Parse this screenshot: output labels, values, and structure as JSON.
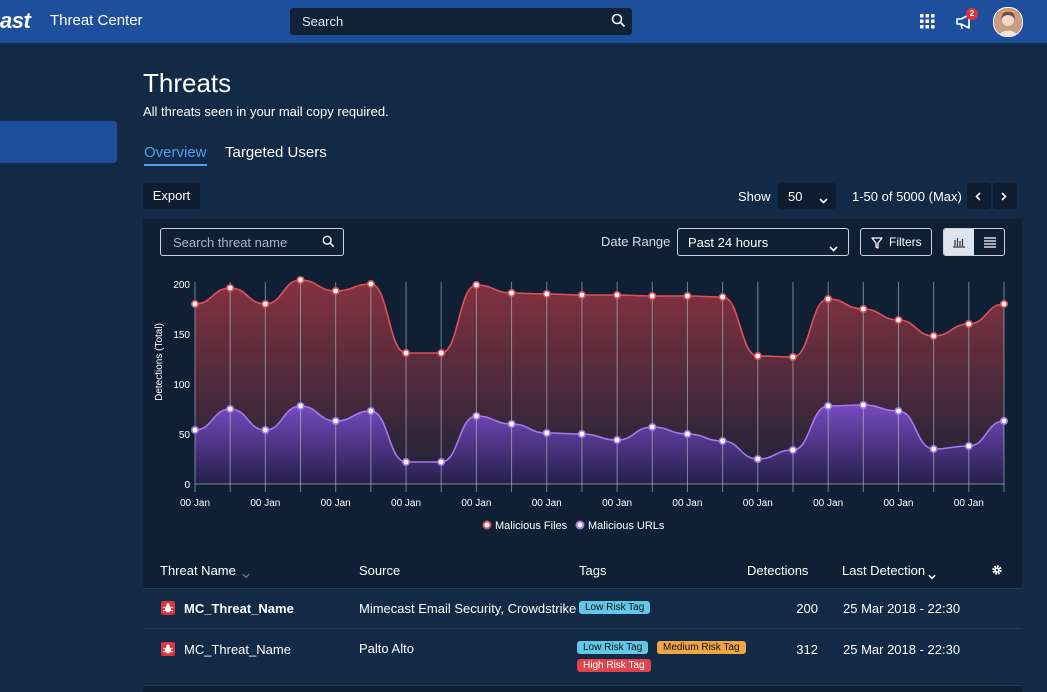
{
  "topbar": {
    "brand_fragment": "ast",
    "app_title": "Threat Center",
    "search_text": "Search",
    "notification_count": "2"
  },
  "page": {
    "title": "Threats",
    "subtitle": "All threats seen in your mail copy required.",
    "tabs": [
      {
        "label": "Overview",
        "active": true
      },
      {
        "label": "Targeted Users",
        "active": false
      }
    ]
  },
  "toolbar": {
    "export_label": "Export",
    "show_label": "Show",
    "show_value": "50",
    "pager_text": "1-50 of 5000 (Max)"
  },
  "filters": {
    "search_placeholder": "Search threat name",
    "date_range_label": "Date Range",
    "date_range_value": "Past 24 hours",
    "filters_label": "Filters"
  },
  "colors": {
    "files": "#e0505a",
    "urls": "#a879ee",
    "accent": "#4e9ff5"
  },
  "chart_data": {
    "type": "area",
    "ylabel": "Detections (Total)",
    "ylim": [
      0,
      200
    ],
    "yticks": [
      0,
      50,
      100,
      150,
      200
    ],
    "x_tick_label": "00 Jan",
    "x": [
      0,
      1,
      2,
      3,
      4,
      5,
      6,
      7,
      8,
      9,
      10,
      11,
      12,
      13,
      14,
      15,
      16,
      17,
      18,
      19,
      20,
      21,
      22,
      23
    ],
    "x_tick_positions": [
      0,
      2,
      4,
      6,
      8,
      10,
      12,
      14,
      16,
      18,
      20,
      22
    ],
    "series": [
      {
        "name": "Malicious Files",
        "values": [
          180,
          196,
          180,
          204,
          193,
          200,
          131,
          131,
          199,
          191,
          190,
          189,
          189,
          188,
          188,
          187,
          128,
          127,
          185,
          175,
          164,
          148,
          160,
          180
        ]
      },
      {
        "name": "Malicious URLs",
        "values": [
          54,
          75,
          54,
          78,
          63,
          73,
          22,
          22,
          68,
          60,
          51,
          50,
          44,
          57,
          50,
          43,
          25,
          34,
          78,
          79,
          73,
          35,
          38,
          63
        ]
      }
    ],
    "legend_position": "bottom-center",
    "grid_vertical": true
  },
  "table": {
    "columns": [
      "Threat Name",
      "Source",
      "Tags",
      "Detections",
      "Last Detection"
    ],
    "rows": [
      {
        "name": "MC_Threat_Name",
        "source": "Mimecast Email Security, Crowdstrike",
        "tags": [
          "Low Risk Tag"
        ],
        "detections": "200",
        "last_detection": "25 Mar 2018 - 22:30"
      },
      {
        "name": "MC_Threat_Name",
        "source": "Palto Alto",
        "tags": [
          "Low Risk Tag",
          "Medium Risk Tag",
          "High Risk Tag"
        ],
        "detections": "312",
        "last_detection": "25 Mar 2018 - 22:30"
      }
    ]
  }
}
